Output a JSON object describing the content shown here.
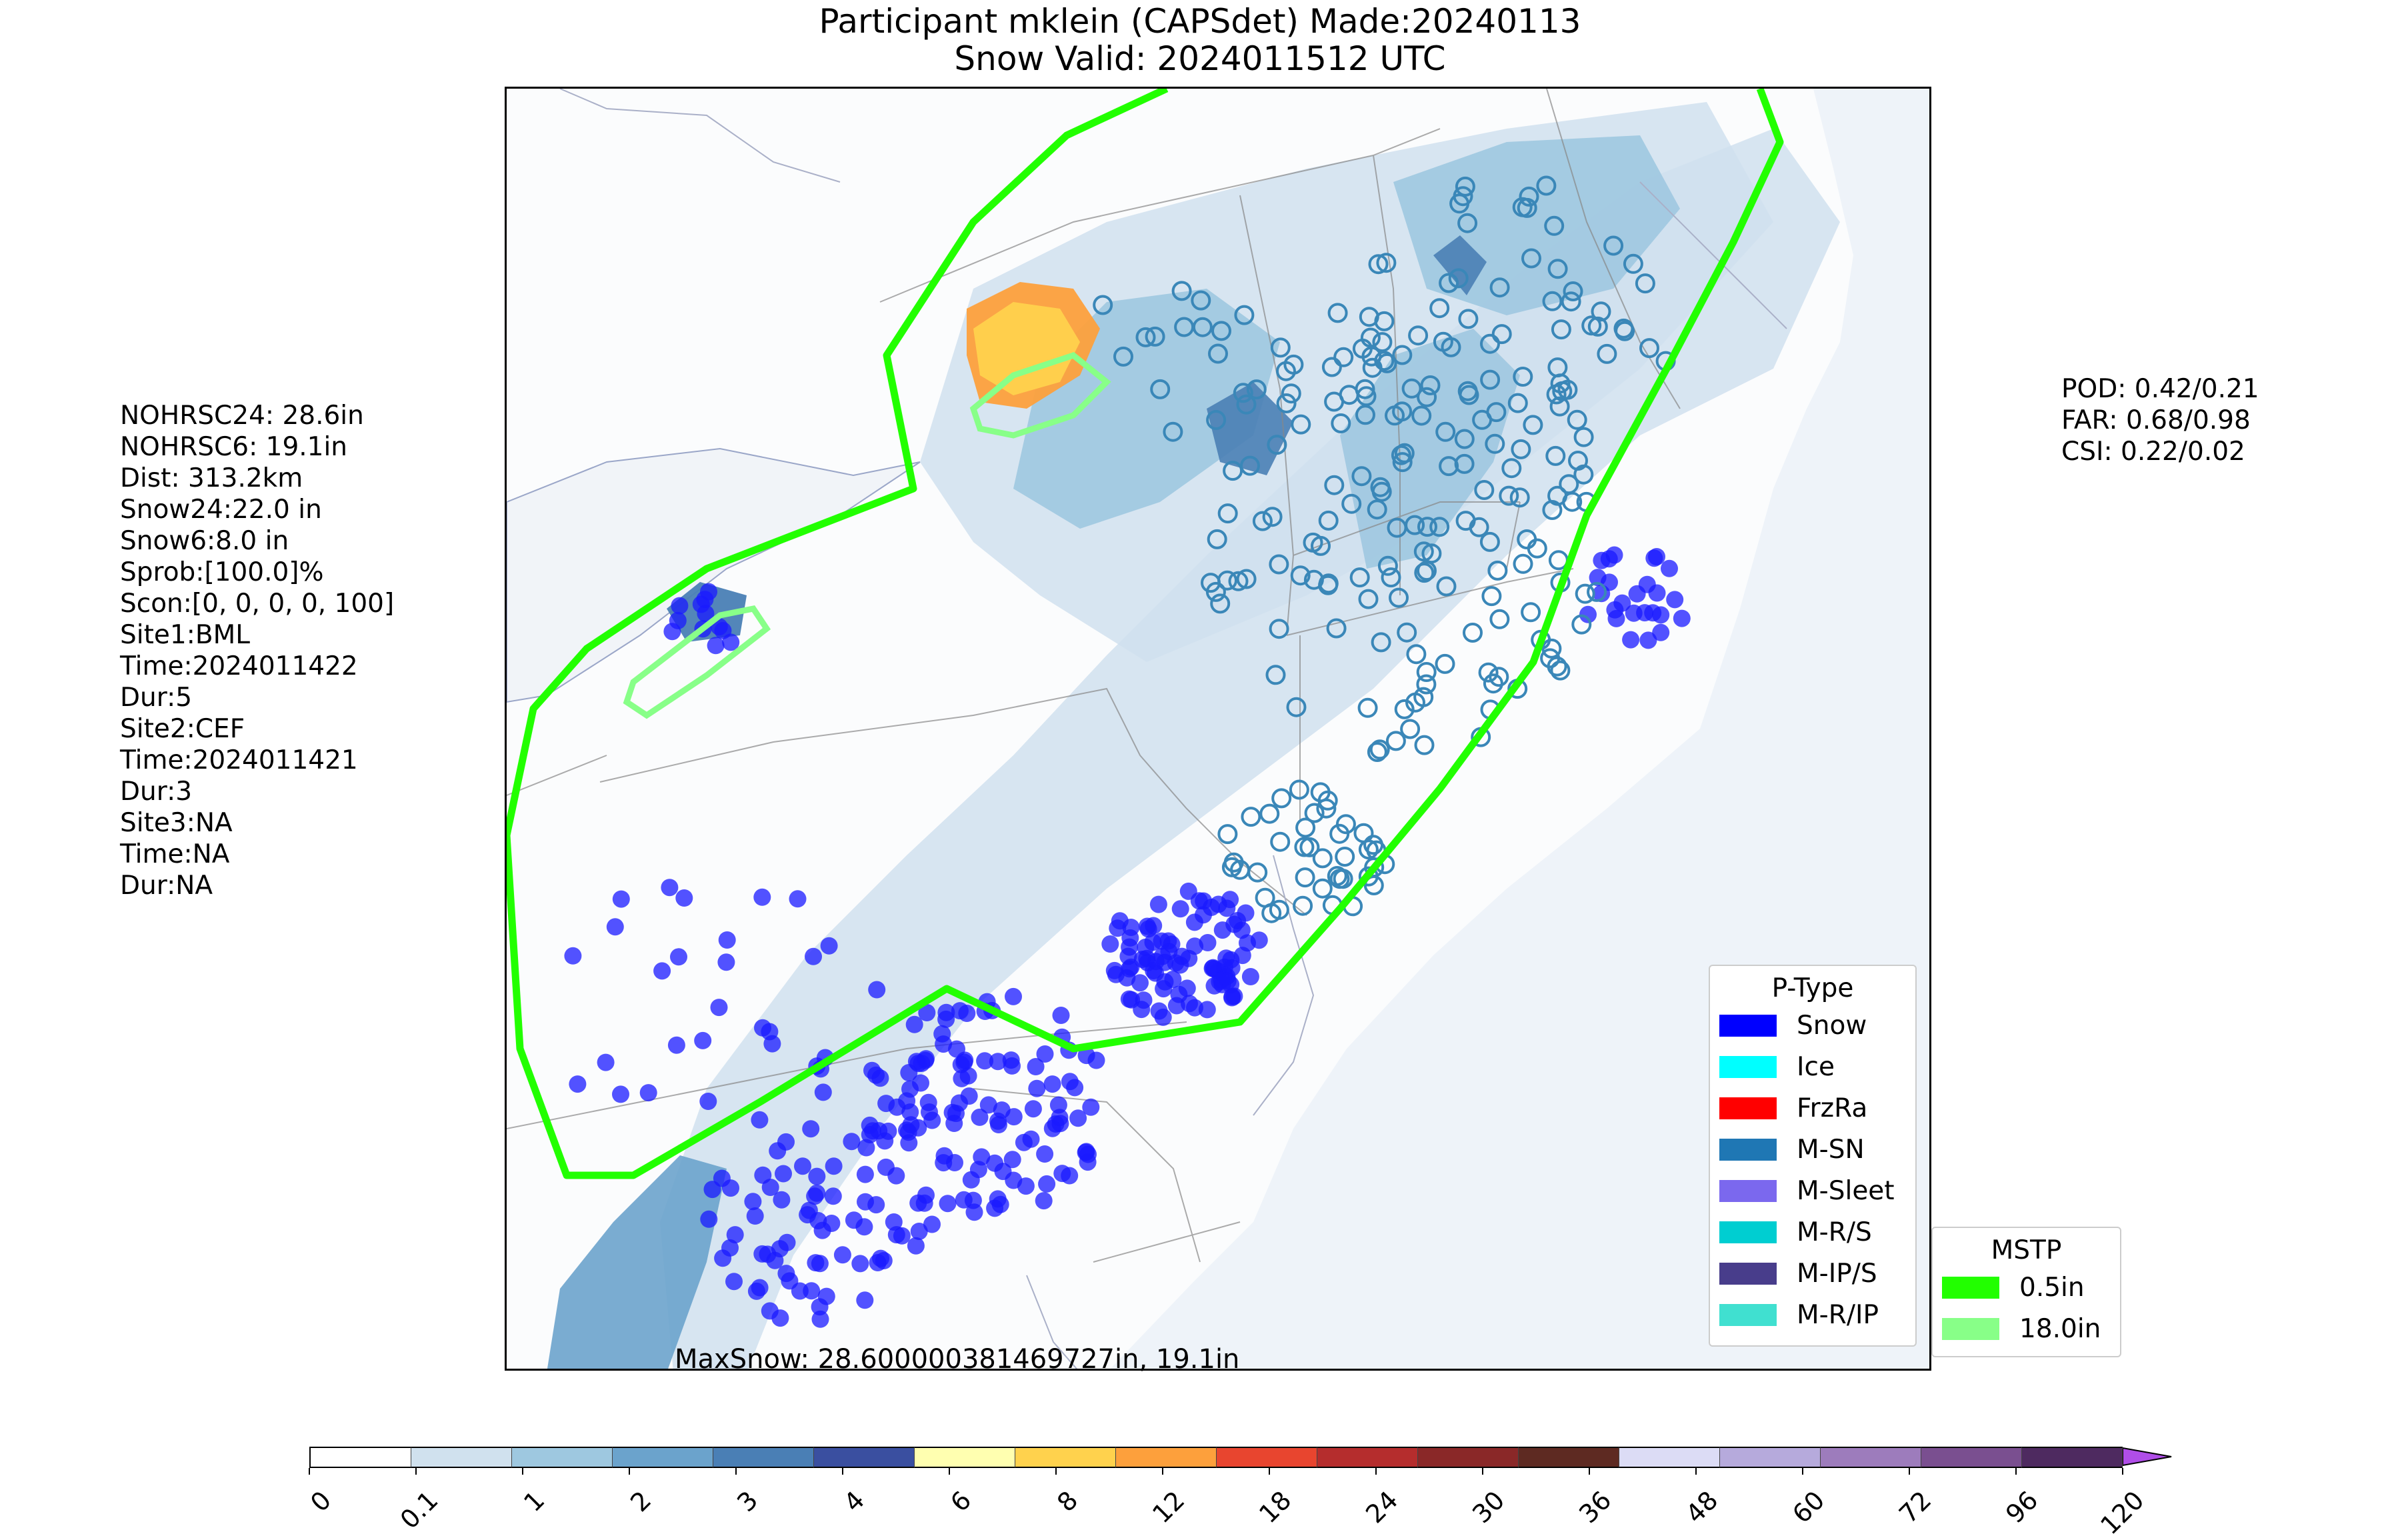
{
  "title": {
    "line1": "Participant mklein (CAPSdet) Made:20240113",
    "line2": "Snow Valid: 2024011512 UTC"
  },
  "left_stats": [
    "NOHRSC24: 28.6in",
    "NOHRSC6: 19.1in",
    "Dist: 313.2km",
    "Snow24:22.0 in",
    "Snow6:8.0 in",
    "Sprob:[100.0]%",
    "Scon:[0, 0, 0, 0, 100]",
    "Site1:BML",
    "Time:2024011422",
    "Dur:5",
    "Site2:CEF",
    "Time:2024011421",
    "Dur:3",
    "Site3:NA",
    "Time:NA",
    "Dur:NA"
  ],
  "right_stats": [
    "POD: 0.42/0.21",
    "FAR: 0.68/0.98",
    "CSI: 0.22/0.02"
  ],
  "max_snow_text": "MaxSnow: 28.600000381469727in, 19.1in",
  "ptype_legend": {
    "title": "P-Type",
    "items": [
      {
        "label": "Snow",
        "color": "#0000ff"
      },
      {
        "label": "Ice",
        "color": "#00ffff"
      },
      {
        "label": "FrzRa",
        "color": "#ff0000"
      },
      {
        "label": "M-SN",
        "color": "#1f77b4"
      },
      {
        "label": "M-Sleet",
        "color": "#7b68ee"
      },
      {
        "label": "M-R/S",
        "color": "#00ced1"
      },
      {
        "label": "M-IP/S",
        "color": "#483d8b"
      },
      {
        "label": "M-R/IP",
        "color": "#40e0d0"
      }
    ]
  },
  "mstp_legend": {
    "title": "MSTP",
    "items": [
      {
        "label": "0.5in",
        "color": "#22ff00"
      },
      {
        "label": "18.0in",
        "color": "#88ff88"
      }
    ]
  },
  "colorbar": {
    "ticks": [
      "0",
      "0.1",
      "1",
      "2",
      "3",
      "4",
      "6",
      "8",
      "12",
      "18",
      "24",
      "30",
      "36",
      "48",
      "60",
      "72",
      "96",
      "120"
    ],
    "colors": [
      "#ffffff",
      "#d0e1ee",
      "#9ec8e0",
      "#6ba3cc",
      "#4a7fb5",
      "#3a4fa0",
      "#ffffb0",
      "#ffd24d",
      "#fda03c",
      "#e8452f",
      "#b52d2d",
      "#8a2828",
      "#5e2a22",
      "#dcdcf5",
      "#b6aadc",
      "#9d7cbc",
      "#7a4f90",
      "#4e2a60"
    ],
    "extend_color": "#b04ee8"
  },
  "map": {
    "background": "#fbfcfd",
    "ocean": "#eef3f9",
    "snow_shading_colors": [
      "#d0e1ee",
      "#9ec8e0",
      "#6ba3cc",
      "#4a7fb5",
      "#ffd24d",
      "#fda03c"
    ]
  }
}
